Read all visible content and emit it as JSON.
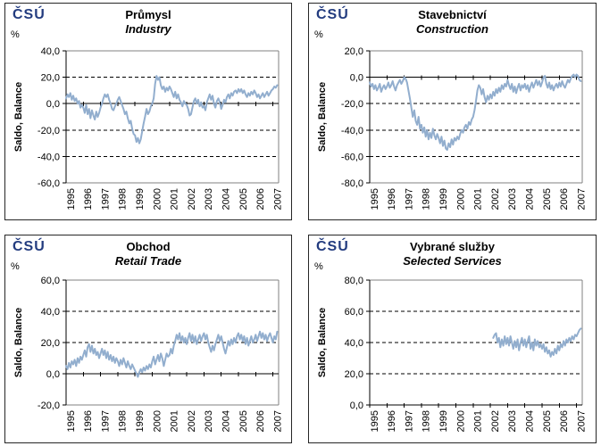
{
  "branding": {
    "logo_text": "ČSÚ"
  },
  "colors": {
    "series_line": "#92AECE",
    "logo_navy": "#233C7F",
    "axis_black": "#000000",
    "frame_gray": "#808080",
    "background": "#FFFFFF"
  },
  "chart_data": [
    {
      "type": "line",
      "title": "Průmysl",
      "subtitle": "Industry",
      "unit": "%",
      "ylabel": "Saldo, Balance",
      "ylim": [
        -60,
        40
      ],
      "ytick_step": 20,
      "ytick_labels": [
        "40,0",
        "20,0",
        "0,0",
        "-20,0",
        "-40,0",
        "-60,0"
      ],
      "x_years": [
        "1995",
        "1996",
        "1997",
        "1998",
        "1999",
        "2000",
        "2001",
        "2002",
        "2003",
        "2004",
        "2005",
        "2006",
        "2007"
      ],
      "months_total": 148,
      "grid": "dashed-horizontal",
      "legend": "none",
      "series": [
        {
          "name": "Saldo, Balance",
          "start_month": 0,
          "monthly_values": [
            4,
            7,
            5,
            8,
            3,
            6,
            2,
            4,
            0,
            2,
            -3,
            -1,
            -3,
            -7,
            -1,
            -8,
            -4,
            -11,
            -5,
            -9,
            -12,
            -6,
            -10,
            -7,
            -3,
            0,
            4,
            7,
            5,
            7,
            3,
            0,
            -4,
            -5,
            -2,
            0,
            3,
            5,
            2,
            -1,
            -4,
            -8,
            -6,
            -11,
            -15,
            -13,
            -19,
            -23,
            -24,
            -29,
            -26,
            -30,
            -27,
            -21,
            -15,
            -10,
            -4,
            -8,
            -6,
            -2,
            0,
            4,
            15,
            21,
            18,
            20,
            14,
            11,
            13,
            9,
            12,
            10,
            13,
            11,
            8,
            5,
            9,
            4,
            7,
            3,
            1,
            -2,
            2,
            0,
            -1,
            -4,
            -9,
            -8,
            -3,
            2,
            4,
            0,
            3,
            -2,
            1,
            -3,
            -2,
            -5,
            1,
            4,
            7,
            3,
            6,
            0,
            -3,
            2,
            4,
            1,
            -4,
            -1,
            3,
            1,
            5,
            7,
            4,
            8,
            6,
            9,
            10,
            8,
            11,
            9,
            11,
            8,
            10,
            7,
            5,
            8,
            6,
            9,
            7,
            10,
            8,
            5,
            7,
            4,
            6,
            8,
            5,
            7,
            9,
            6,
            8,
            10,
            11,
            13,
            12,
            14
          ]
        }
      ]
    },
    {
      "type": "line",
      "title": "Stavebnictví",
      "subtitle": "Construction",
      "unit": "%",
      "ylabel": "Saldo, Balance",
      "ylim": [
        -80,
        20
      ],
      "ytick_step": 20,
      "ytick_labels": [
        "20,0",
        "0,0",
        "-20,0",
        "-40,0",
        "-60,0",
        "-80,0"
      ],
      "x_years": [
        "1995",
        "1996",
        "1997",
        "1998",
        "1999",
        "2000",
        "2001",
        "2002",
        "2003",
        "2004",
        "2005",
        "2006",
        "2007"
      ],
      "months_total": 148,
      "grid": "dashed-horizontal",
      "legend": "none",
      "series": [
        {
          "name": "Saldo, Balance",
          "start_month": 0,
          "monthly_values": [
            -4,
            -7,
            -5,
            -9,
            -6,
            -10,
            -8,
            -5,
            -11,
            -8,
            -6,
            -9,
            -7,
            -4,
            -8,
            -6,
            -3,
            -7,
            -10,
            -6,
            -4,
            -2,
            -5,
            -3,
            0,
            -1,
            -4,
            -10,
            -16,
            -23,
            -30,
            -25,
            -33,
            -36,
            -30,
            -39,
            -36,
            -42,
            -38,
            -45,
            -40,
            -47,
            -42,
            -46,
            -39,
            -44,
            -47,
            -43,
            -46,
            -50,
            -45,
            -52,
            -48,
            -54,
            -55,
            -50,
            -53,
            -47,
            -51,
            -46,
            -48,
            -45,
            -47,
            -43,
            -40,
            -42,
            -38,
            -36,
            -39,
            -34,
            -36,
            -32,
            -30,
            -25,
            -18,
            -10,
            -6,
            -8,
            -13,
            -9,
            -15,
            -19,
            -14,
            -17,
            -13,
            -16,
            -11,
            -14,
            -9,
            -12,
            -8,
            -11,
            -6,
            -9,
            -5,
            -7,
            -2,
            -6,
            -9,
            -5,
            -11,
            -7,
            -12,
            -8,
            -5,
            -10,
            -6,
            -8,
            -5,
            -9,
            -6,
            -11,
            -7,
            -4,
            -8,
            -5,
            -2,
            -6,
            -3,
            -7,
            -4,
            0,
            1,
            -5,
            -8,
            -4,
            -9,
            -6,
            -10,
            -7,
            -5,
            -8,
            -4,
            -7,
            -3,
            -6,
            -8,
            -5,
            -2,
            -4,
            -1,
            1,
            2,
            0,
            2,
            1,
            -2,
            -3
          ]
        }
      ]
    },
    {
      "type": "line",
      "title": "Obchod",
      "subtitle": "Retail Trade",
      "unit": "%",
      "ylabel": "Saldo, Balance",
      "ylim": [
        -20,
        60
      ],
      "ytick_step": 20,
      "ytick_labels": [
        "60,0",
        "40,0",
        "20,0",
        "0,0",
        "-20,0"
      ],
      "x_years": [
        "1995",
        "1996",
        "1997",
        "1998",
        "1999",
        "2000",
        "2001",
        "2002",
        "2003",
        "2004",
        "2005",
        "2006",
        "2007"
      ],
      "months_total": 148,
      "grid": "dashed-horizontal",
      "legend": "none",
      "series": [
        {
          "name": "Saldo, Balance",
          "start_month": 0,
          "monthly_values": [
            5,
            3,
            7,
            4,
            8,
            6,
            9,
            5,
            10,
            7,
            11,
            9,
            12,
            15,
            11,
            17,
            19,
            14,
            18,
            13,
            16,
            12,
            14,
            10,
            13,
            16,
            12,
            15,
            10,
            14,
            9,
            12,
            8,
            11,
            7,
            10,
            8,
            5,
            9,
            6,
            10,
            7,
            4,
            8,
            5,
            3,
            6,
            4,
            2,
            0,
            -2,
            1,
            3,
            1,
            4,
            2,
            5,
            3,
            6,
            4,
            8,
            11,
            6,
            9,
            12,
            8,
            13,
            10,
            5,
            9,
            13,
            11,
            12,
            16,
            13,
            18,
            21,
            25,
            22,
            26,
            21,
            24,
            20,
            23,
            19,
            23,
            26,
            21,
            25,
            20,
            24,
            19,
            22,
            25,
            21,
            24,
            26,
            22,
            25,
            20,
            17,
            14,
            18,
            15,
            19,
            22,
            25,
            21,
            24,
            20,
            16,
            13,
            17,
            21,
            18,
            22,
            19,
            23,
            20,
            24,
            26,
            22,
            25,
            21,
            24,
            19,
            23,
            18,
            21,
            24,
            20,
            22,
            25,
            21,
            24,
            27,
            23,
            26,
            22,
            25,
            21,
            24,
            26,
            23,
            20,
            24,
            22,
            27
          ]
        }
      ]
    },
    {
      "type": "line",
      "title": "Vybrané služby",
      "subtitle": "Selected Services",
      "unit": "%",
      "ylabel": "Saldo, Balance",
      "ylim": [
        0,
        80
      ],
      "ytick_step": 20,
      "ytick_labels": [
        "80,0",
        "60,0",
        "40,0",
        "20,0",
        "0,0"
      ],
      "x_years": [
        "1995",
        "1996",
        "1997",
        "1998",
        "1999",
        "2000",
        "2001",
        "2002",
        "2003",
        "2004",
        "2005",
        "2006",
        "2007"
      ],
      "months_total": 148,
      "grid": "dashed-horizontal",
      "legend": "none",
      "series": [
        {
          "name": "Saldo, Balance",
          "start_month": 86,
          "monthly_values": [
            43,
            45,
            46,
            40,
            43,
            37,
            42,
            38,
            44,
            39,
            43,
            38,
            44,
            40,
            36,
            41,
            37,
            42,
            35,
            40,
            43,
            38,
            42,
            37,
            41,
            44,
            36,
            40,
            35,
            42,
            38,
            41,
            37,
            39,
            36,
            39,
            34,
            37,
            33,
            35,
            31,
            34,
            32,
            36,
            33,
            38,
            35,
            39,
            37,
            41,
            38,
            42,
            40,
            43,
            41,
            44,
            42,
            45,
            44,
            46,
            48,
            49
          ]
        }
      ]
    }
  ]
}
